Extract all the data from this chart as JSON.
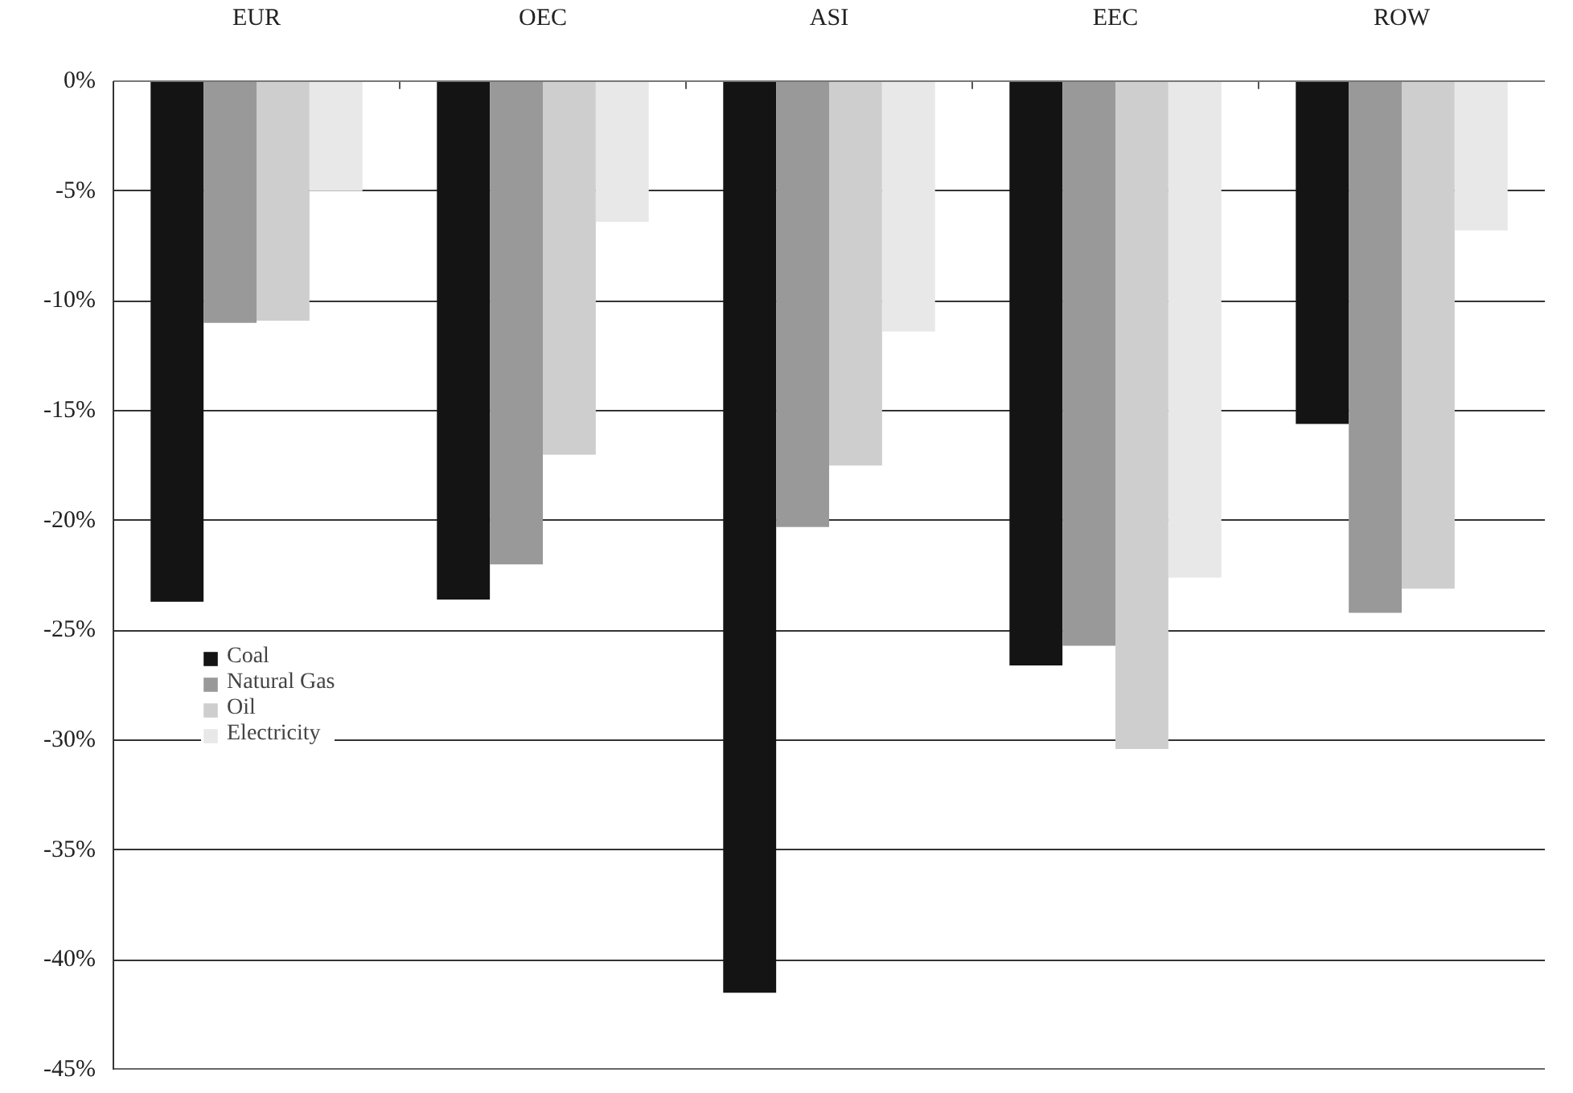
{
  "chart_data": {
    "type": "bar",
    "categories": [
      "EUR",
      "OEC",
      "ASI",
      "EEC",
      "ROW"
    ],
    "series": [
      {
        "name": "Coal",
        "color": "#141414",
        "values": [
          -23.7,
          -23.6,
          -41.5,
          -26.6,
          -15.6
        ]
      },
      {
        "name": "Natural Gas",
        "color": "#999999",
        "values": [
          -11.0,
          -22.0,
          -20.3,
          -25.7,
          -24.2
        ]
      },
      {
        "name": "Oil",
        "color": "#cecece",
        "values": [
          -10.9,
          -17.0,
          -17.5,
          -30.4,
          -23.1
        ]
      },
      {
        "name": "Electricity",
        "color": "#e8e8e8",
        "values": [
          -5.0,
          -6.4,
          -11.4,
          -22.6,
          -6.8
        ]
      }
    ],
    "ylim": [
      -45,
      0
    ],
    "yticks": [
      {
        "value": 0,
        "label": "0%"
      },
      {
        "value": -5,
        "label": "-5%"
      },
      {
        "value": -10,
        "label": "-10%"
      },
      {
        "value": -15,
        "label": "-15%"
      },
      {
        "value": -20,
        "label": "-20%"
      },
      {
        "value": -25,
        "label": "-25%"
      },
      {
        "value": -30,
        "label": "-30%"
      },
      {
        "value": -35,
        "label": "-35%"
      },
      {
        "value": -40,
        "label": "-40%"
      },
      {
        "value": -45,
        "label": "-45%"
      }
    ],
    "grid": "y",
    "legend": "left"
  }
}
